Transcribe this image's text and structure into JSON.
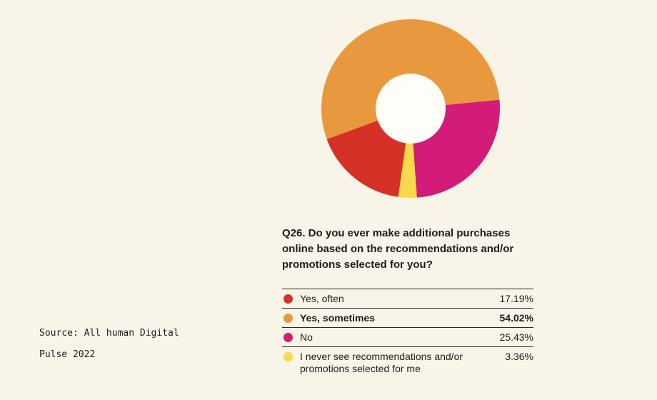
{
  "background_color": "#f9f4e8",
  "chart_data": {
    "type": "pie",
    "variant": "donut",
    "title": "Q26. Do you ever make additional purchases online based on the recommendations and/or promotions selected for you?",
    "start_angle_deg": 188,
    "direction": "clockwise",
    "legend_position": "below",
    "hole_color": "#fffdf7",
    "segments": [
      {
        "label": "Yes, often",
        "value": 17.19,
        "display": "17.19%",
        "color": "#d53127",
        "emphasis": false
      },
      {
        "label": "Yes, sometimes",
        "value": 54.02,
        "display": "54.02%",
        "color": "#e9993d",
        "emphasis": true
      },
      {
        "label": "No",
        "value": 25.43,
        "display": "25.43%",
        "color": "#d31c77",
        "emphasis": false
      },
      {
        "label": "I never see recommendations and/or promotions selected for me",
        "value": 3.36,
        "display": "3.36%",
        "color": "#f7d94b",
        "emphasis": false
      }
    ]
  },
  "source": {
    "line1": "Source: All human Digital",
    "line2": "Pulse 2022"
  }
}
